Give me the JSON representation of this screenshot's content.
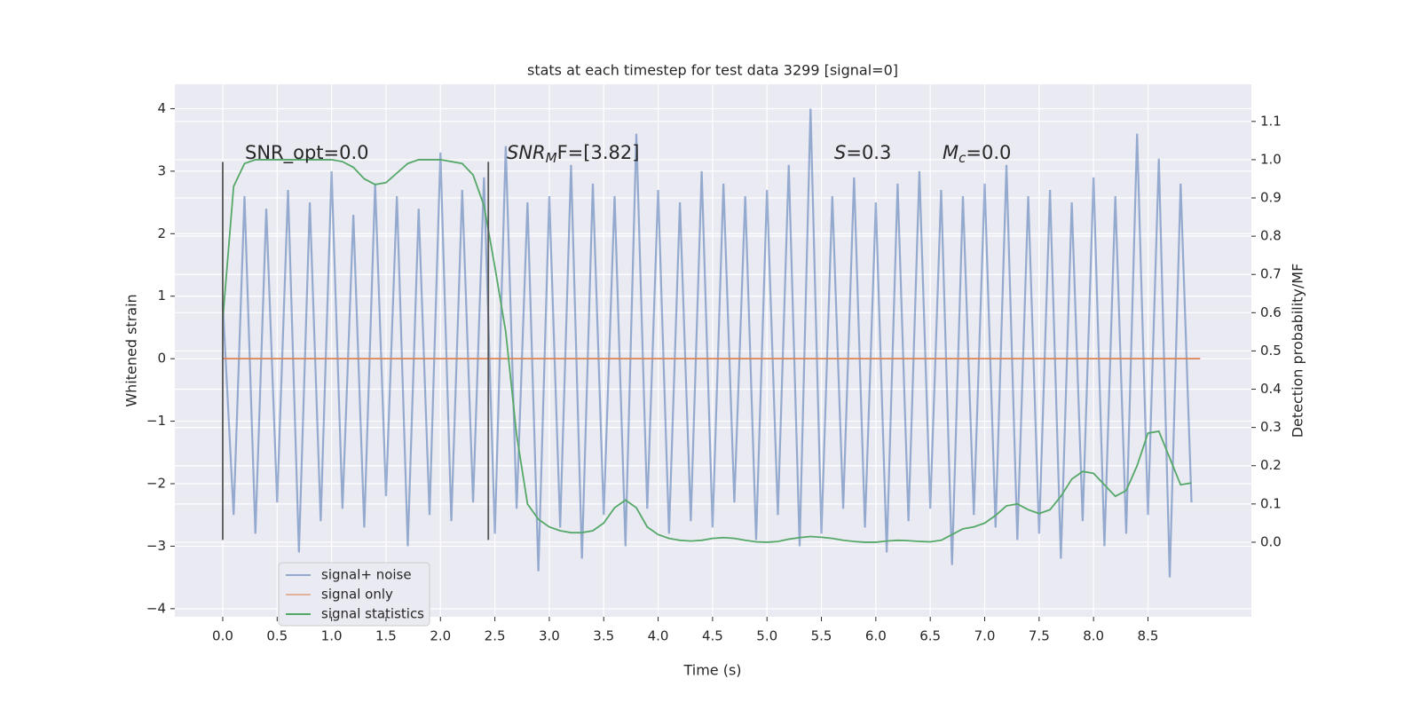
{
  "chart_data": {
    "type": "line",
    "title": "stats at each timestep for test data 3299 [signal=0]",
    "xlabel": "Time (s)",
    "ylabel": "Whitened strain",
    "y2label": "Detection probability/MF",
    "annotations": [
      "SNR_opt=0.0",
      {
        "main": "SNR",
        "sub": "M",
        "tail": "F=[3.82]"
      },
      {
        "main": "S",
        "tail": "=0.3"
      },
      {
        "main": "M",
        "sub": "c",
        "tail": "=0.0"
      }
    ],
    "xlim": [
      -0.44,
      9.45
    ],
    "ylim": [
      -4.13,
      4.39
    ],
    "y2lim": [
      -0.195,
      1.197
    ],
    "xticks": [
      {
        "value": 0,
        "label": "0.0"
      },
      {
        "value": 0.5,
        "label": "0.5"
      },
      {
        "value": 1,
        "label": "1.0"
      },
      {
        "value": 1.5,
        "label": "1.5"
      },
      {
        "value": 2,
        "label": "2.0"
      },
      {
        "value": 2.5,
        "label": "2.5"
      },
      {
        "value": 3,
        "label": "3.0"
      },
      {
        "value": 3.5,
        "label": "3.5"
      },
      {
        "value": 4,
        "label": "4.0"
      },
      {
        "value": 4.5,
        "label": "4.5"
      },
      {
        "value": 5,
        "label": "5.0"
      },
      {
        "value": 5.5,
        "label": "5.5"
      },
      {
        "value": 6,
        "label": "6.0"
      },
      {
        "value": 6.5,
        "label": "6.5"
      },
      {
        "value": 7,
        "label": "7.0"
      },
      {
        "value": 7.5,
        "label": "7.5"
      },
      {
        "value": 8,
        "label": "8.0"
      },
      {
        "value": 8.5,
        "label": "8.5"
      }
    ],
    "yticks": [
      {
        "value": -4,
        "label": "−4"
      },
      {
        "value": -3,
        "label": "−3"
      },
      {
        "value": -2,
        "label": "−2"
      },
      {
        "value": -1,
        "label": "−1"
      },
      0,
      1,
      2,
      3,
      4
    ],
    "y2ticks": [
      {
        "value": 0,
        "label": "0.0"
      },
      {
        "value": 0.1,
        "label": "0.1"
      },
      {
        "value": 0.2,
        "label": "0.2"
      },
      {
        "value": 0.3,
        "label": "0.3"
      },
      {
        "value": 0.4,
        "label": "0.4"
      },
      {
        "value": 0.5,
        "label": "0.5"
      },
      {
        "value": 0.6,
        "label": "0.6"
      },
      {
        "value": 0.7,
        "label": "0.7"
      },
      {
        "value": 0.8,
        "label": "0.8"
      },
      {
        "value": 0.9,
        "label": "0.9"
      },
      {
        "value": 1,
        "label": "1.0"
      },
      {
        "value": 1.1,
        "label": "1.1"
      }
    ],
    "grid": true,
    "legend": "lower left",
    "vlines": {
      "x": [
        0,
        2.44
      ],
      "ymin": -2.9,
      "ymax": 3.15,
      "color": "#555555"
    },
    "x": [
      0,
      0.1,
      0.2,
      0.3,
      0.4,
      0.5,
      0.6,
      0.7,
      0.8,
      0.9,
      1,
      1.1,
      1.2,
      1.3,
      1.4,
      1.5,
      1.6,
      1.7,
      1.8,
      1.9,
      2,
      2.1,
      2.2,
      2.3,
      2.4,
      2.5,
      2.6,
      2.7,
      2.8,
      2.9,
      3,
      3.1,
      3.2,
      3.3,
      3.4,
      3.5,
      3.6,
      3.7,
      3.8,
      3.9,
      4,
      4.1,
      4.2,
      4.3,
      4.4,
      4.5,
      4.6,
      4.7,
      4.8,
      4.9,
      5,
      5.1,
      5.2,
      5.3,
      5.4,
      5.5,
      5.6,
      5.7,
      5.8,
      5.9,
      6,
      6.1,
      6.2,
      6.3,
      6.4,
      6.5,
      6.6,
      6.7,
      6.8,
      6.9,
      7,
      7.1,
      7.2,
      7.3,
      7.4,
      7.5,
      7.6,
      7.7,
      7.8,
      7.9,
      8,
      8.1,
      8.2,
      8.3,
      8.4,
      8.5,
      8.6,
      8.7,
      8.8,
      8.9
    ],
    "series": [
      {
        "name": "signal+ noise",
        "color": "#4c72b0",
        "values": [
          0.9,
          -2.5,
          2.6,
          -2.8,
          2.4,
          -2.3,
          2.7,
          -3.1,
          2.5,
          -2.6,
          3.0,
          -2.4,
          2.3,
          -2.7,
          2.8,
          -2.2,
          2.6,
          -3.0,
          2.4,
          -2.5,
          3.3,
          -2.6,
          2.7,
          -2.3,
          2.9,
          -2.8,
          3.4,
          -2.4,
          2.5,
          -3.4,
          2.6,
          -2.7,
          3.1,
          -3.2,
          2.8,
          -2.5,
          2.6,
          -3.0,
          3.6,
          -2.4,
          2.7,
          -2.8,
          2.5,
          -2.6,
          3.0,
          -2.7,
          2.8,
          -2.3,
          2.6,
          -2.9,
          2.7,
          -2.5,
          3.1,
          -3.0,
          4.0,
          -2.8,
          2.6,
          -2.4,
          2.9,
          -2.7,
          2.5,
          -3.1,
          2.8,
          -2.6,
          3.0,
          -2.4,
          2.7,
          -3.3,
          2.6,
          -2.5,
          2.8,
          -2.7,
          3.1,
          -2.9,
          2.6,
          -2.8,
          2.7,
          -3.2,
          2.5,
          -2.6,
          2.9,
          -3.0,
          2.6,
          -2.8,
          3.6,
          -2.5,
          3.2,
          -3.5,
          2.8,
          -2.3
        ]
      },
      {
        "name": "signal only",
        "color": "#dd8452",
        "x": [
          0,
          8.98
        ],
        "values": [
          0,
          0
        ]
      },
      {
        "name": "signal statistics",
        "color": "#55a868",
        "axis": "y2",
        "values": [
          0.58,
          0.93,
          0.99,
          1.0,
          1.0,
          1.0,
          1.0,
          1.0,
          1.0,
          1.0,
          1.0,
          0.995,
          0.98,
          0.95,
          0.935,
          0.94,
          0.965,
          0.99,
          1.0,
          1.0,
          1.0,
          0.995,
          0.99,
          0.96,
          0.88,
          0.72,
          0.55,
          0.28,
          0.1,
          0.06,
          0.04,
          0.03,
          0.025,
          0.025,
          0.03,
          0.05,
          0.09,
          0.11,
          0.09,
          0.04,
          0.02,
          0.01,
          0.005,
          0.003,
          0.005,
          0.01,
          0.012,
          0.01,
          0.005,
          0.001,
          0.0,
          0.002,
          0.008,
          0.012,
          0.015,
          0.013,
          0.01,
          0.005,
          0.002,
          0.0,
          0.0,
          0.003,
          0.005,
          0.004,
          0.002,
          0.001,
          0.005,
          0.02,
          0.035,
          0.04,
          0.05,
          0.07,
          0.095,
          0.1,
          0.085,
          0.075,
          0.085,
          0.12,
          0.165,
          0.185,
          0.18,
          0.15,
          0.12,
          0.135,
          0.2,
          0.285,
          0.29,
          0.22,
          0.15,
          0.155
        ]
      }
    ]
  }
}
